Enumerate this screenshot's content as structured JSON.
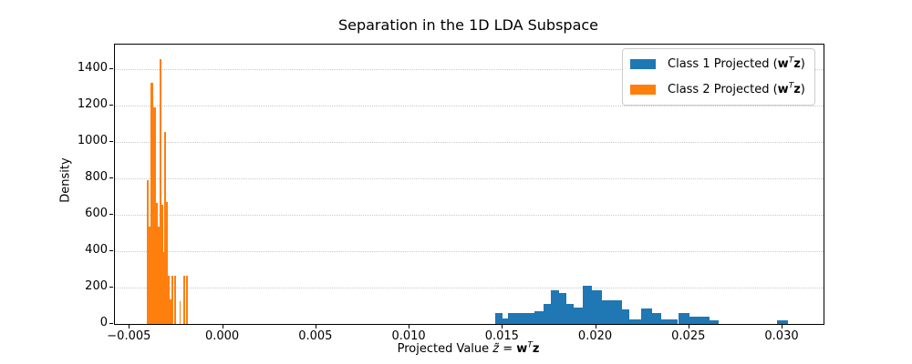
{
  "title": "Separation in the 1D LDA Subspace",
  "axes": {
    "ylabel": "Density",
    "xlabel_parts": {
      "pre": "Projected Value ",
      "ztilde": "z̃",
      "eq": " = ",
      "w": "w",
      "T": "T",
      "z": "z"
    }
  },
  "legend": {
    "items": [
      {
        "color": "#1f77b4",
        "pre": "Class 1 Projected (",
        "w": "w",
        "T": "T",
        "z": "z",
        "post": ")"
      },
      {
        "color": "#ff7f0e",
        "pre": "Class 2 Projected (",
        "w": "w",
        "T": "T",
        "z": "z",
        "post": ")"
      }
    ]
  },
  "chart_data": {
    "type": "bar",
    "subtype": "histogram",
    "title": "Separation in the 1D LDA Subspace",
    "xlabel": "Projected Value z̃ = wᵀz",
    "ylabel": "Density",
    "xlim": [
      -0.0058,
      0.0322
    ],
    "ylim": [
      0,
      1535
    ],
    "xticks": [
      -0.005,
      0.0,
      0.005,
      0.01,
      0.015,
      0.02,
      0.025,
      0.03
    ],
    "xtick_labels": [
      "−0.005",
      "0.000",
      "0.005",
      "0.010",
      "0.015",
      "0.020",
      "0.025",
      "0.030"
    ],
    "yticks": [
      0,
      200,
      400,
      600,
      800,
      1000,
      1200,
      1400
    ],
    "ytick_labels": [
      "0",
      "200",
      "400",
      "600",
      "800",
      "1000",
      "1200",
      "1400"
    ],
    "grid": {
      "axis": "y",
      "style": "dotted",
      "color": "#c9c9c9"
    },
    "legend_position": "upper right",
    "background": "#ffffff",
    "series": [
      {
        "name": "Class 1 Projected (wᵀz)",
        "color": "#1f77b4",
        "bars": [
          [
            0.0146,
            0.015,
            60
          ],
          [
            0.015,
            0.0153,
            30
          ],
          [
            0.0153,
            0.0157,
            58
          ],
          [
            0.0157,
            0.0161,
            58
          ],
          [
            0.0161,
            0.0167,
            58
          ],
          [
            0.0167,
            0.0172,
            72
          ],
          [
            0.0172,
            0.0176,
            110
          ],
          [
            0.0176,
            0.018,
            184
          ],
          [
            0.018,
            0.0184,
            168
          ],
          [
            0.0184,
            0.0188,
            110
          ],
          [
            0.0188,
            0.0193,
            88
          ],
          [
            0.0193,
            0.0198,
            212
          ],
          [
            0.0198,
            0.0203,
            184
          ],
          [
            0.0203,
            0.0209,
            128
          ],
          [
            0.0209,
            0.0214,
            128
          ],
          [
            0.0214,
            0.0218,
            78
          ],
          [
            0.0218,
            0.0224,
            25
          ],
          [
            0.0224,
            0.023,
            83
          ],
          [
            0.023,
            0.0235,
            58
          ],
          [
            0.0235,
            0.0244,
            25
          ],
          [
            0.0244,
            0.025,
            61
          ],
          [
            0.025,
            0.0261,
            38
          ],
          [
            0.0261,
            0.0266,
            21
          ],
          [
            0.0297,
            0.0303,
            21
          ]
        ]
      },
      {
        "name": "Class 2 Projected (wᵀz)",
        "color": "#ff7f0e",
        "bars": [
          [
            -0.0041,
            -0.00398,
            790
          ],
          [
            -0.00398,
            -0.00387,
            535
          ],
          [
            -0.00387,
            -0.00373,
            1325
          ],
          [
            -0.00373,
            -0.00362,
            1190
          ],
          [
            -0.00362,
            -0.00349,
            665
          ],
          [
            -0.00349,
            -0.00341,
            535
          ],
          [
            -0.00341,
            -0.00329,
            1455
          ],
          [
            -0.00329,
            -0.00322,
            655
          ],
          [
            -0.00322,
            -0.00315,
            395
          ],
          [
            -0.00315,
            -0.00306,
            1055
          ],
          [
            -0.00306,
            -0.00298,
            670
          ],
          [
            -0.00298,
            -0.00285,
            265
          ],
          [
            -0.00285,
            -0.00278,
            135
          ],
          [
            -0.00278,
            -0.00267,
            265
          ],
          [
            -0.00263,
            -0.00252,
            265
          ],
          [
            -0.00235,
            -0.00227,
            125
          ],
          [
            -0.00214,
            -0.00204,
            265
          ],
          [
            -0.00199,
            -0.00189,
            265
          ]
        ]
      }
    ]
  }
}
